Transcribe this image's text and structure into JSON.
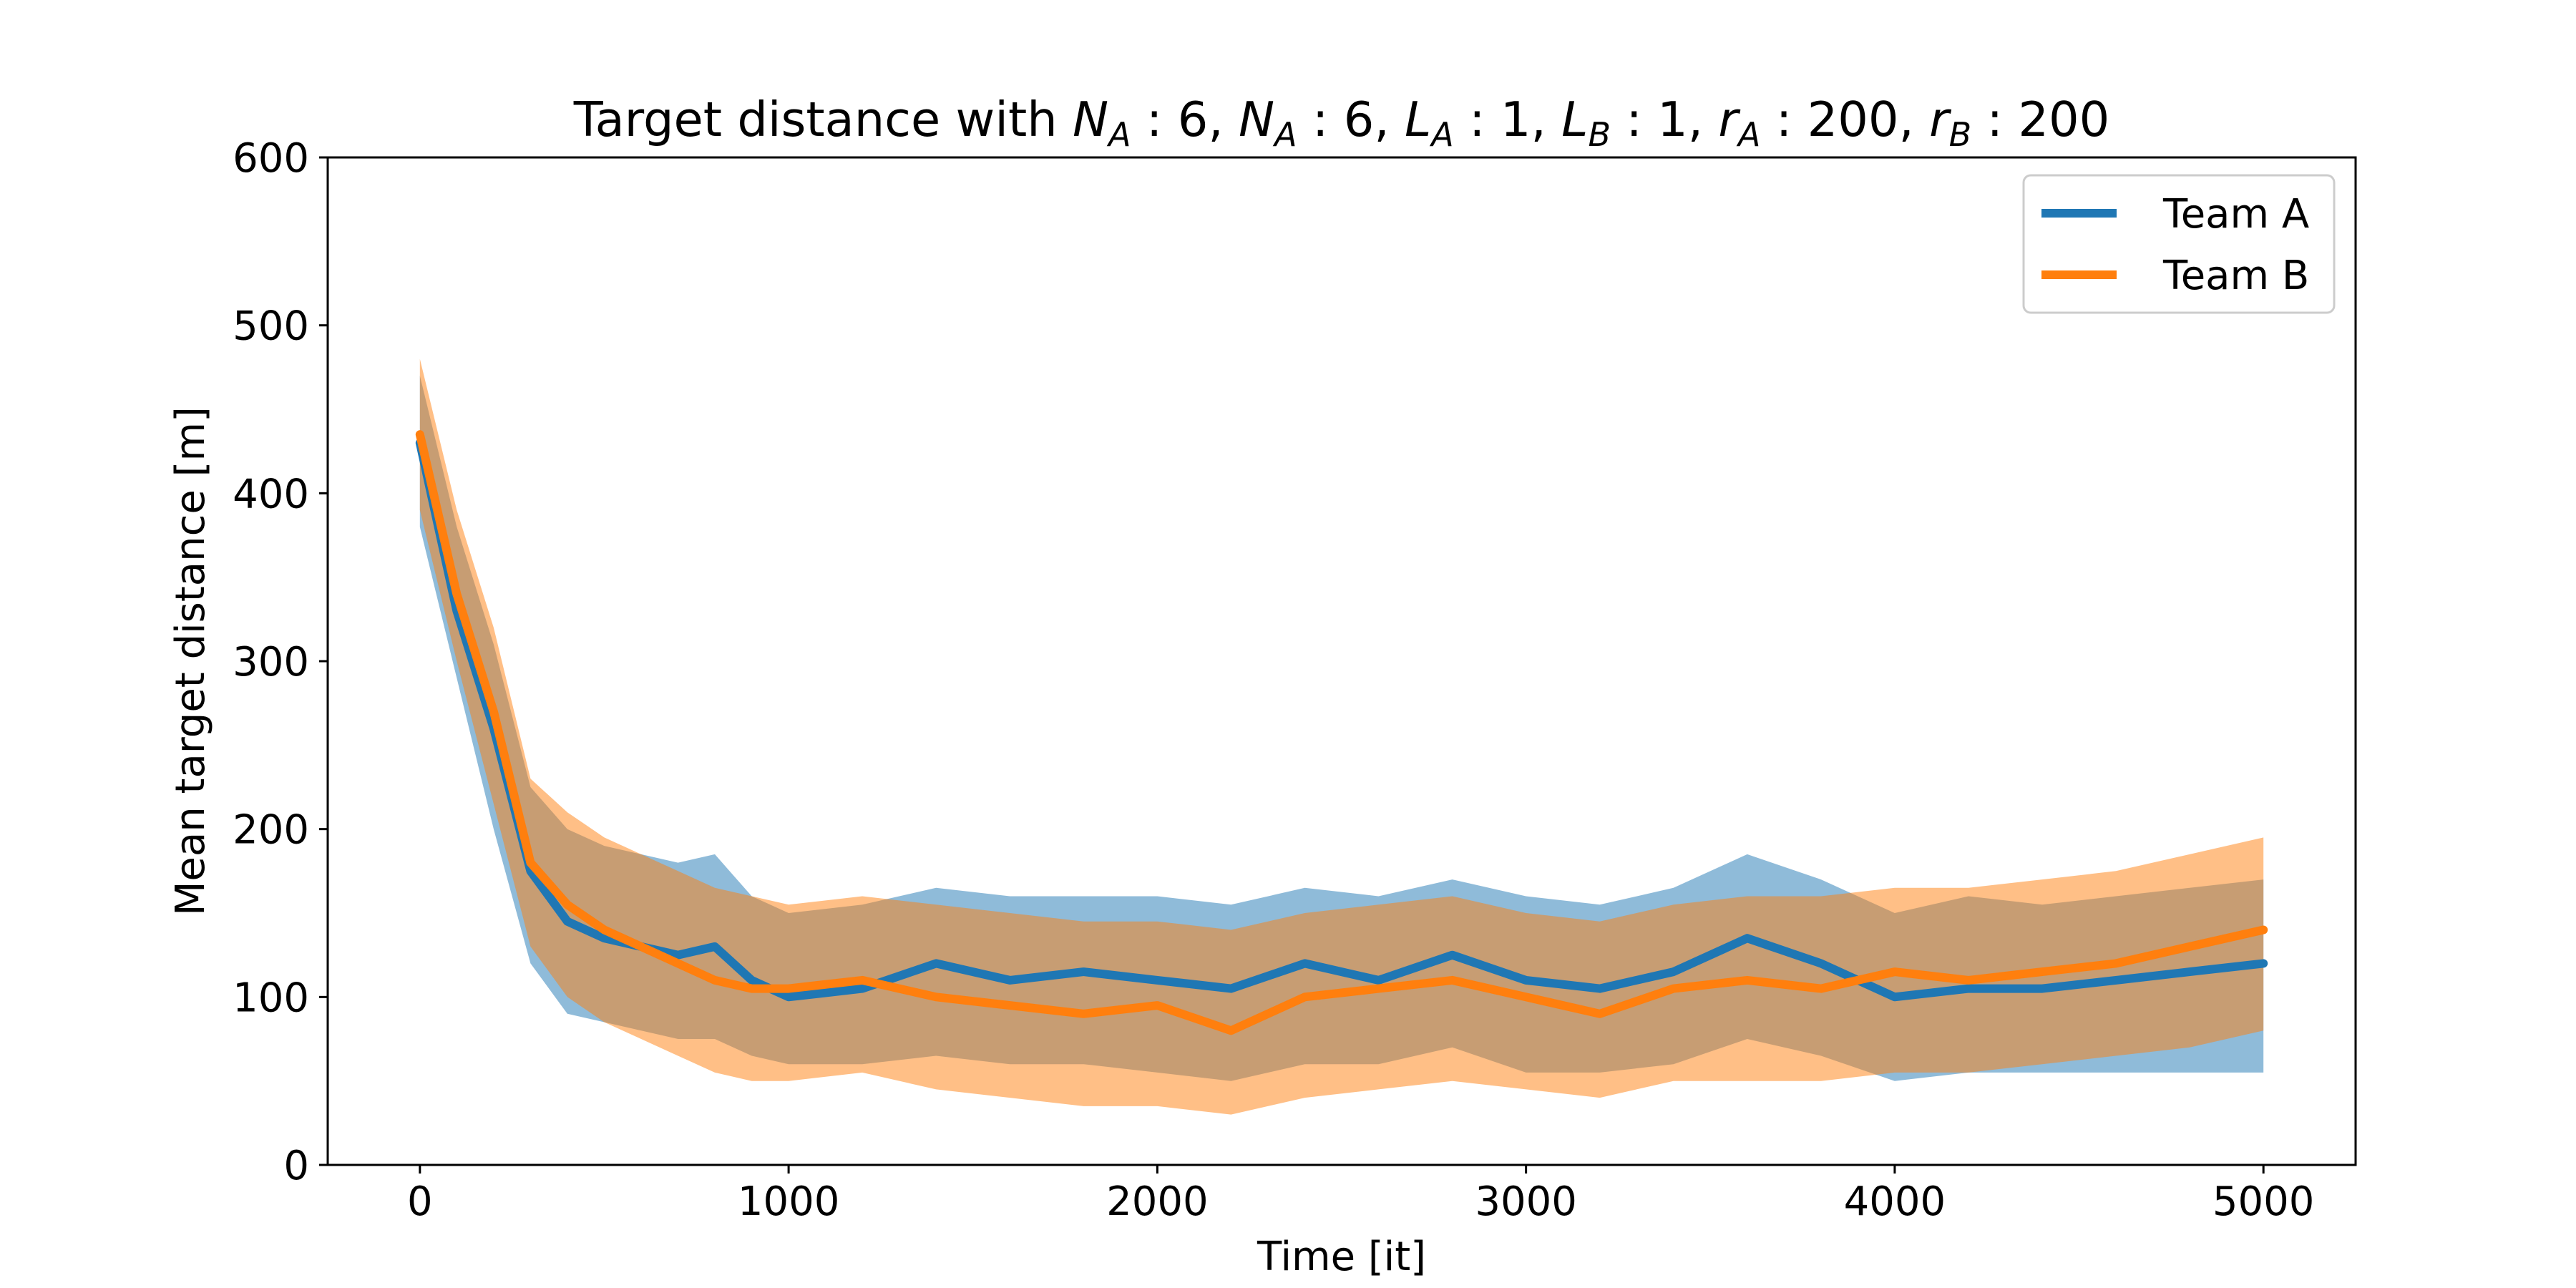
{
  "chart_data": {
    "type": "line",
    "title": "Target distance with  N_A:6, N_A:6, L_A:1, L_B:1, r_A:200, r_B:200",
    "title_parts": {
      "prefix": "Target distance with  ",
      "terms": [
        {
          "base": "N",
          "sub": "A",
          "value": "6"
        },
        {
          "base": "N",
          "sub": "A",
          "value": "6"
        },
        {
          "base": "L",
          "sub": "A",
          "value": "1"
        },
        {
          "base": "L",
          "sub": "B",
          "value": "1"
        },
        {
          "base": "r",
          "sub": "A",
          "value": "200"
        },
        {
          "base": "r",
          "sub": "B",
          "value": "200"
        }
      ]
    },
    "xlabel": "Time [it]",
    "ylabel": "Mean target distance [m]",
    "xlim": [
      -250,
      5250
    ],
    "ylim": [
      0,
      600
    ],
    "xticks": [
      0,
      1000,
      2000,
      3000,
      4000,
      5000
    ],
    "yticks": [
      0,
      100,
      200,
      300,
      400,
      500,
      600
    ],
    "grid": false,
    "legend": "top-right",
    "series": [
      {
        "name": "Team A",
        "color": "#1f77b4",
        "band_color": "#1f77b4",
        "band_opacity": 0.5,
        "x": [
          0,
          100,
          200,
          300,
          400,
          500,
          600,
          700,
          800,
          900,
          1000,
          1200,
          1400,
          1600,
          1800,
          2000,
          2200,
          2400,
          2600,
          2800,
          3000,
          3200,
          3400,
          3600,
          3800,
          4000,
          4200,
          4400,
          4600,
          4800,
          5000
        ],
        "mean": [
          430,
          330,
          260,
          175,
          145,
          135,
          130,
          125,
          130,
          110,
          100,
          105,
          120,
          110,
          115,
          110,
          105,
          120,
          110,
          125,
          110,
          105,
          115,
          135,
          120,
          100,
          105,
          105,
          110,
          115,
          120
        ],
        "lower": [
          380,
          290,
          200,
          120,
          90,
          85,
          80,
          75,
          75,
          65,
          60,
          60,
          65,
          60,
          60,
          55,
          50,
          60,
          60,
          70,
          55,
          55,
          60,
          75,
          65,
          50,
          55,
          55,
          55,
          55,
          55
        ],
        "upper": [
          470,
          380,
          310,
          225,
          200,
          190,
          185,
          180,
          185,
          160,
          150,
          155,
          165,
          160,
          160,
          160,
          155,
          165,
          160,
          170,
          160,
          155,
          165,
          185,
          170,
          150,
          160,
          155,
          160,
          165,
          170
        ]
      },
      {
        "name": "Team B",
        "color": "#ff7f0e",
        "band_color": "#ff7f0e",
        "band_opacity": 0.5,
        "x": [
          0,
          100,
          200,
          300,
          400,
          500,
          600,
          700,
          800,
          900,
          1000,
          1200,
          1400,
          1600,
          1800,
          2000,
          2200,
          2400,
          2600,
          2800,
          3000,
          3200,
          3400,
          3600,
          3800,
          4000,
          4200,
          4400,
          4600,
          4800,
          5000
        ],
        "mean": [
          435,
          340,
          270,
          180,
          155,
          140,
          130,
          120,
          110,
          105,
          105,
          110,
          100,
          95,
          90,
          95,
          80,
          100,
          105,
          110,
          100,
          90,
          105,
          110,
          105,
          115,
          110,
          115,
          120,
          130,
          140
        ],
        "lower": [
          390,
          300,
          215,
          130,
          100,
          85,
          75,
          65,
          55,
          50,
          50,
          55,
          45,
          40,
          35,
          35,
          30,
          40,
          45,
          50,
          45,
          40,
          50,
          50,
          50,
          55,
          55,
          60,
          65,
          70,
          80
        ],
        "upper": [
          480,
          390,
          320,
          230,
          210,
          195,
          185,
          175,
          165,
          160,
          155,
          160,
          155,
          150,
          145,
          145,
          140,
          150,
          155,
          160,
          150,
          145,
          155,
          160,
          160,
          165,
          165,
          170,
          175,
          185,
          195
        ]
      }
    ]
  }
}
